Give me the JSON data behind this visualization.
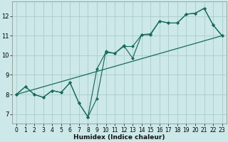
{
  "xlabel": "Humidex (Indice chaleur)",
  "xlim": [
    -0.5,
    23.5
  ],
  "ylim": [
    6.5,
    12.75
  ],
  "yticks": [
    7,
    8,
    9,
    10,
    11,
    12
  ],
  "xticks": [
    0,
    1,
    2,
    3,
    4,
    5,
    6,
    7,
    8,
    9,
    10,
    11,
    12,
    13,
    14,
    15,
    16,
    17,
    18,
    19,
    20,
    21,
    22,
    23
  ],
  "bg_color": "#cce8e8",
  "grid_color": "#aacccc",
  "line_color": "#1a6b5a",
  "line1_x": [
    0,
    1,
    2,
    3,
    4,
    5,
    6,
    7,
    8,
    9,
    10,
    11,
    12,
    13,
    14,
    15,
    16,
    17,
    18,
    19,
    20,
    21,
    22,
    23
  ],
  "line1_y": [
    8.0,
    8.4,
    8.0,
    7.85,
    8.2,
    8.1,
    8.6,
    7.55,
    6.85,
    7.8,
    10.2,
    10.1,
    10.5,
    9.85,
    11.05,
    11.1,
    11.75,
    11.65,
    11.65,
    12.1,
    12.15,
    12.4,
    11.55,
    11.0
  ],
  "line2_x": [
    0,
    1,
    2,
    3,
    4,
    5,
    6,
    7,
    8,
    9,
    10,
    11,
    12,
    13,
    14,
    15,
    16,
    17,
    18,
    19,
    20,
    21,
    22,
    23
  ],
  "line2_y": [
    8.0,
    8.4,
    8.0,
    7.85,
    8.2,
    8.1,
    8.6,
    7.55,
    6.85,
    9.3,
    10.15,
    10.1,
    10.45,
    10.45,
    11.05,
    11.05,
    11.75,
    11.65,
    11.65,
    12.1,
    12.15,
    12.4,
    11.55,
    11.0
  ],
  "line3_x": [
    0,
    23
  ],
  "line3_y": [
    8.0,
    11.0
  ]
}
